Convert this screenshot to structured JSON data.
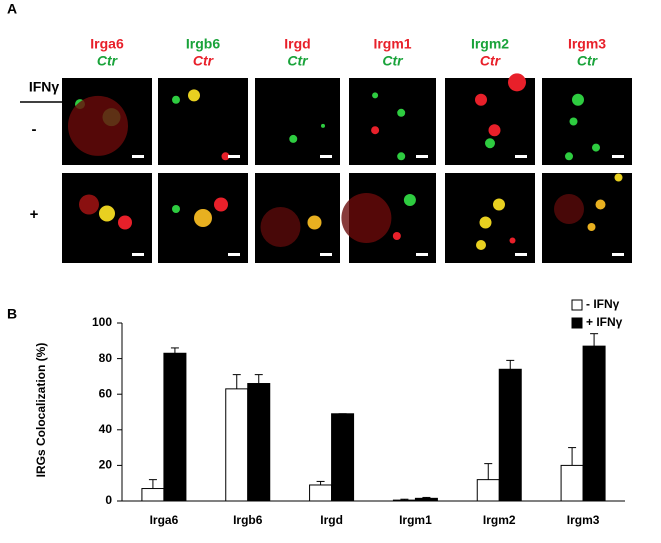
{
  "panel_a": {
    "label": "A",
    "row_header": "IFNγ",
    "rows": [
      "-",
      "+"
    ],
    "columns": [
      {
        "protein": "Irga6",
        "protein_color": "#e8202a",
        "marker": "Ctr",
        "marker_color": "#19a33a"
      },
      {
        "protein": "Irgb6",
        "protein_color": "#19a33a",
        "marker": "Ctr",
        "marker_color": "#e8202a"
      },
      {
        "protein": "Irgd",
        "protein_color": "#e8202a",
        "marker": "Ctr",
        "marker_color": "#19a33a"
      },
      {
        "protein": "Irgm1",
        "protein_color": "#e8202a",
        "marker": "Ctr",
        "marker_color": "#19a33a"
      },
      {
        "protein": "Irgm2",
        "protein_color": "#19a33a",
        "marker": "Ctr",
        "marker_color": "#e8202a"
      },
      {
        "protein": "Irgm3",
        "protein_color": "#e8202a",
        "marker": "Ctr",
        "marker_color": "#19a33a"
      }
    ]
  },
  "panel_b": {
    "label": "B"
  },
  "chart_data": {
    "type": "bar",
    "y_label": "IRGs Colocalization (%)",
    "categories": [
      "Irga6",
      "Irgb6",
      "Irgd",
      "Irgm1",
      "Irgm2",
      "Irgm3"
    ],
    "series": [
      {
        "name": "- IFNγ",
        "color": "#ffffff",
        "values": [
          7,
          63,
          9,
          0.5,
          12,
          20
        ],
        "errors": [
          5,
          8,
          2,
          0.5,
          9,
          10
        ]
      },
      {
        "name": "+ IFNγ",
        "color": "#000000",
        "values": [
          83,
          66,
          49,
          1.5,
          74,
          87
        ],
        "errors": [
          3,
          5,
          0,
          0.5,
          5,
          7
        ]
      }
    ],
    "ylim": [
      0,
      100
    ],
    "yticks": [
      0,
      20,
      40,
      60,
      80,
      100
    ],
    "legend": "top-right"
  }
}
